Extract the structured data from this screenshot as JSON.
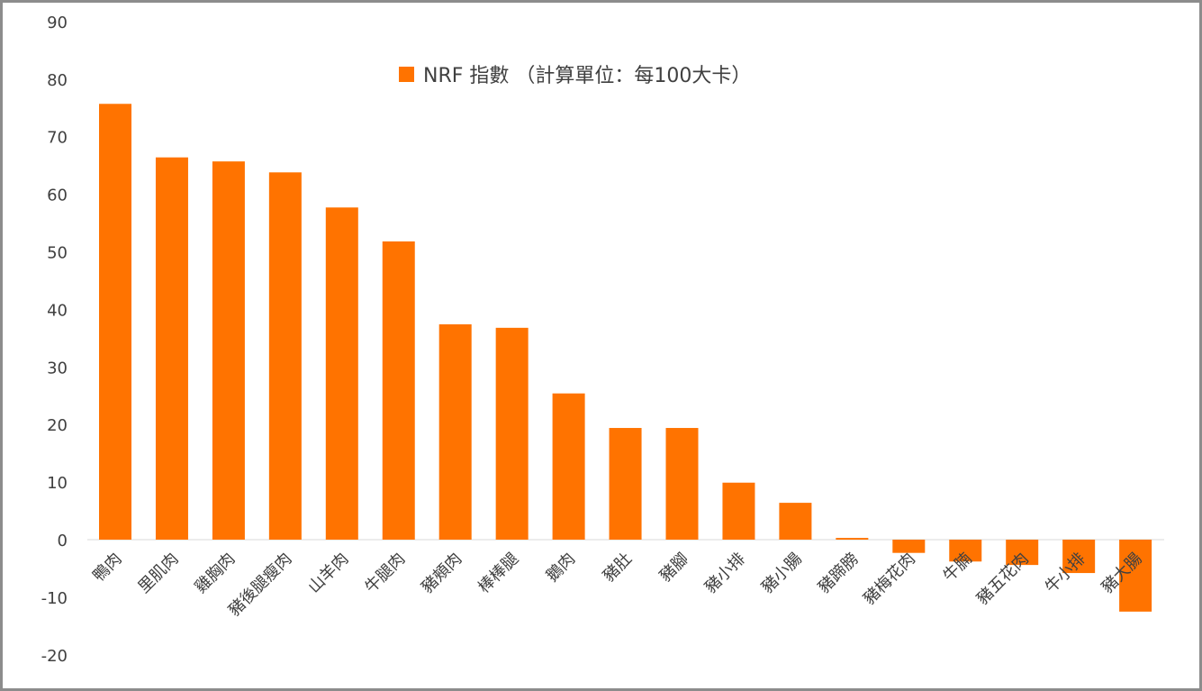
{
  "chart_data": {
    "type": "bar",
    "title": "",
    "legend": {
      "label": "NRF 指數 （計算單位：每100大卡）",
      "position": "top-center"
    },
    "xlabel": "",
    "ylabel": "",
    "ylim": [
      -20,
      90
    ],
    "yticks": [
      90,
      80,
      70,
      60,
      50,
      40,
      30,
      20,
      10,
      0,
      -10,
      -20
    ],
    "grid": false,
    "color": "#FF7300",
    "categories": [
      "鴨肉",
      "里肌肉",
      "雞胸肉",
      "豬後腿瘦肉",
      "山羊肉",
      "牛腿肉",
      "豬頰肉",
      "棒棒腿",
      "鵝肉",
      "豬肚",
      "豬腳",
      "豬小排",
      "豬小腸",
      "豬蹄膀",
      "豬梅花肉",
      "牛腩",
      "豬五花肉",
      "牛小排",
      "豬大腸"
    ],
    "values": [
      75.7,
      66.4,
      65.7,
      63.8,
      57.7,
      51.8,
      37.4,
      36.8,
      25.4,
      19.4,
      19.4,
      9.9,
      6.4,
      0.3,
      -2.3,
      -3.8,
      -4.4,
      -5.8,
      -12.5
    ]
  }
}
